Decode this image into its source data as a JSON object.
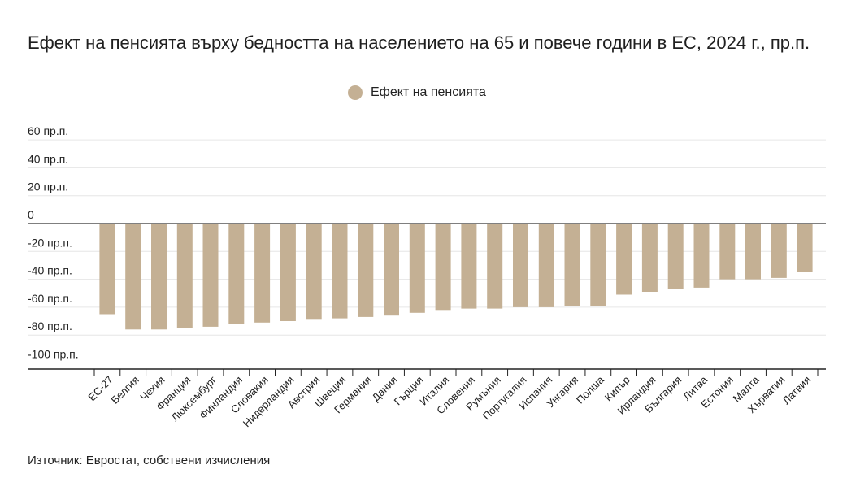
{
  "title": "Ефект на пенсията върху бедността на населението на 65 и повече години в ЕС, 2024 г., пр.п.",
  "source": "Източник: Евростат, собствени изчисления",
  "colors": {
    "bar": "#c4b094",
    "grid": "#e6e6e6",
    "zero_line": "#333333",
    "axis": "#222222"
  },
  "chart_data": {
    "type": "bar",
    "categories": [
      "ЕС-27",
      "Белгия",
      "Чехия",
      "Франция",
      "Люксембург",
      "Финландия",
      "Словакия",
      "Нидерландия",
      "Австрия",
      "Швеция",
      "Германия",
      "Дания",
      "Гърция",
      "Италия",
      "Словения",
      "Румъния",
      "Португалия",
      "Испания",
      "Унгария",
      "Полша",
      "Кипър",
      "Ирландия",
      "България",
      "Литва",
      "Естония",
      "Малта",
      "Хърватия",
      "Латвия"
    ],
    "series": [
      {
        "name": "Ефект на пенсията",
        "values": [
          -65,
          -76,
          -76,
          -75,
          -74,
          -72,
          -71,
          -70,
          -69,
          -68,
          -67,
          -66,
          -64,
          -62,
          -61,
          -61,
          -60,
          -60,
          -59,
          -59,
          -51,
          -49,
          -47,
          -46,
          -40,
          -40,
          -39,
          -35
        ]
      }
    ],
    "y_ticks": [
      60,
      40,
      20,
      0,
      -20,
      -40,
      -60,
      -80,
      -100
    ],
    "y_tick_labels": [
      "60 пр.п.",
      "40 пр.п.",
      "20 пр.п.",
      "0",
      "-20 пр.п.",
      "-40 пр.п.",
      "-60 пр.п.",
      "-80 пр.п.",
      "-100 пр.п."
    ],
    "ylim": [
      -105,
      60
    ],
    "grid": true,
    "legend_position": "top-center"
  }
}
